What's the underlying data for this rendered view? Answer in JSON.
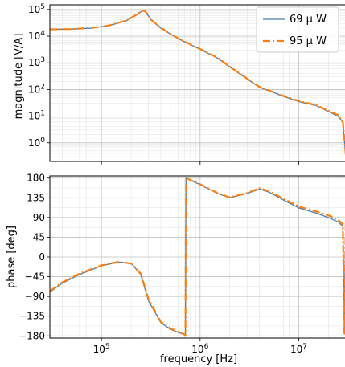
{
  "chart_data": [
    {
      "type": "line",
      "title": "",
      "xlabel": "",
      "ylabel": "magnitude [V/A]",
      "xscale": "log",
      "yscale": "log",
      "xlim": [
        30000,
        30000000
      ],
      "ylim": [
        0.2,
        150000
      ],
      "xticks": [
        100000,
        1000000,
        10000000
      ],
      "xtick_labels": [
        "",
        "",
        ""
      ],
      "yticks": [
        1,
        10,
        100,
        1000,
        10000,
        100000
      ],
      "ytick_labels": [
        "10^0",
        "10^1",
        "10^2",
        "10^3",
        "10^4",
        "10^5"
      ],
      "grid": true,
      "legend": "top-right",
      "series": [
        {
          "name": "69 μ W",
          "color": "#4a7fb0",
          "linestyle": "solid",
          "x": [
            30000,
            50000,
            80000,
            120000,
            180000,
            230000,
            260000,
            280000,
            320000,
            400000,
            600000,
            1000000,
            1500000,
            2000000,
            3000000,
            4000000,
            5000000,
            7000000,
            10000000,
            15000000,
            20000000,
            25000000,
            28000000,
            30000000
          ],
          "y": [
            18000,
            18500,
            20000,
            25000,
            38000,
            65000,
            90000,
            82000,
            40000,
            20000,
            8000,
            3200,
            1500,
            700,
            250,
            120,
            90,
            55,
            35,
            25,
            15,
            10,
            6,
            0.3
          ]
        },
        {
          "name": "95 μ W",
          "color": "#ff7f0e",
          "linestyle": "dashdot",
          "x": [
            30000,
            50000,
            80000,
            120000,
            180000,
            230000,
            260000,
            280000,
            320000,
            400000,
            600000,
            1000000,
            1500000,
            2000000,
            3000000,
            4000000,
            5000000,
            7000000,
            10000000,
            15000000,
            20000000,
            25000000,
            28000000,
            30000000
          ],
          "y": [
            18000,
            18500,
            20500,
            25500,
            39000,
            66000,
            92000,
            84000,
            41000,
            20500,
            8200,
            3300,
            1550,
            720,
            255,
            125,
            92,
            58,
            37,
            26,
            16,
            11,
            6,
            0.35
          ]
        }
      ]
    },
    {
      "type": "line",
      "title": "",
      "xlabel": "frequency [Hz]",
      "ylabel": "phase [deg]",
      "xscale": "log",
      "yscale": "linear",
      "xlim": [
        30000,
        30000000
      ],
      "ylim": [
        -185,
        185
      ],
      "xticks": [
        100000,
        1000000,
        10000000
      ],
      "xtick_labels": [
        "10^5",
        "10^6",
        "10^7"
      ],
      "yticks": [
        -180,
        -135,
        -90,
        -45,
        0,
        45,
        90,
        135,
        180
      ],
      "ytick_labels": [
        "−180",
        "−135",
        "−90",
        "−45",
        "0",
        "45",
        "90",
        "135",
        "180"
      ],
      "grid": true,
      "series": [
        {
          "name": "69 μ W",
          "color": "#4a7fb0",
          "linestyle": "solid",
          "x": [
            30000,
            40000,
            60000,
            100000,
            150000,
            200000,
            250000,
            300000,
            400000,
            500000,
            600000,
            700000,
            710000,
            720000,
            1000000,
            1500000,
            2000000,
            3000000,
            4000000,
            5000000,
            7000000,
            10000000,
            15000000,
            20000000,
            25000000,
            28000000,
            29000000,
            30000000
          ],
          "y": [
            -80,
            -60,
            -40,
            -20,
            -12,
            -14,
            -40,
            -100,
            -150,
            -165,
            -172,
            -178,
            -180,
            180,
            165,
            145,
            135,
            145,
            155,
            148,
            130,
            112,
            100,
            90,
            80,
            70,
            -160,
            80
          ]
        },
        {
          "name": "95 μ W",
          "color": "#ff7f0e",
          "linestyle": "dashdot",
          "x": [
            30000,
            40000,
            60000,
            100000,
            150000,
            200000,
            250000,
            300000,
            400000,
            500000,
            600000,
            700000,
            710000,
            720000,
            1000000,
            1500000,
            2000000,
            3000000,
            4000000,
            5000000,
            7000000,
            10000000,
            15000000,
            20000000,
            25000000,
            28000000,
            29000000,
            30000000
          ],
          "y": [
            -78,
            -58,
            -38,
            -19,
            -11,
            -15,
            -38,
            -96,
            -148,
            -163,
            -171,
            -177,
            -180,
            180,
            166,
            146,
            136,
            146,
            157,
            150,
            133,
            115,
            104,
            95,
            85,
            75,
            -175,
            90
          ]
        }
      ]
    }
  ]
}
